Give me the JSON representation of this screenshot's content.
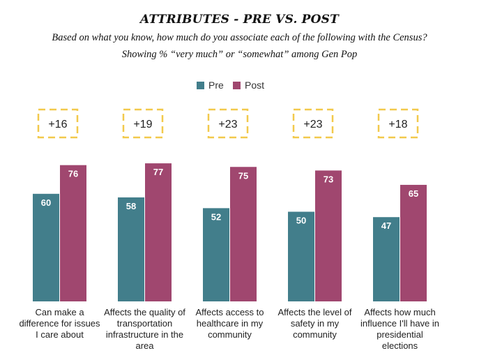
{
  "title": "ATTRIBUTES - PRE VS. POST",
  "subtitle_line1": "Based on what you know, how much do you associate each of the following with the Census?",
  "subtitle_line2": "Showing % “very much” or “somewhat” among Gen Pop",
  "colors": {
    "pre": "#427e8b",
    "post": "#a0476f",
    "diff_box": "#f2c94c"
  },
  "chart_data": {
    "type": "bar",
    "categories": [
      "Can make a difference for issues I care about",
      "Affects the quality of transportation infrastructure in the area",
      "Affects access to healthcare in my community",
      "Affects the level of safety in my community",
      "Affects how much influence I'll have in presidential elections"
    ],
    "series": [
      {
        "name": "Pre",
        "values": [
          60,
          58,
          52,
          50,
          47
        ]
      },
      {
        "name": "Post",
        "values": [
          76,
          77,
          75,
          73,
          65
        ]
      }
    ],
    "differences": [
      "+16",
      "+19",
      "+23",
      "+23",
      "+18"
    ],
    "legend_position": "top-center",
    "grid": false,
    "ylim": [
      0,
      85
    ]
  }
}
